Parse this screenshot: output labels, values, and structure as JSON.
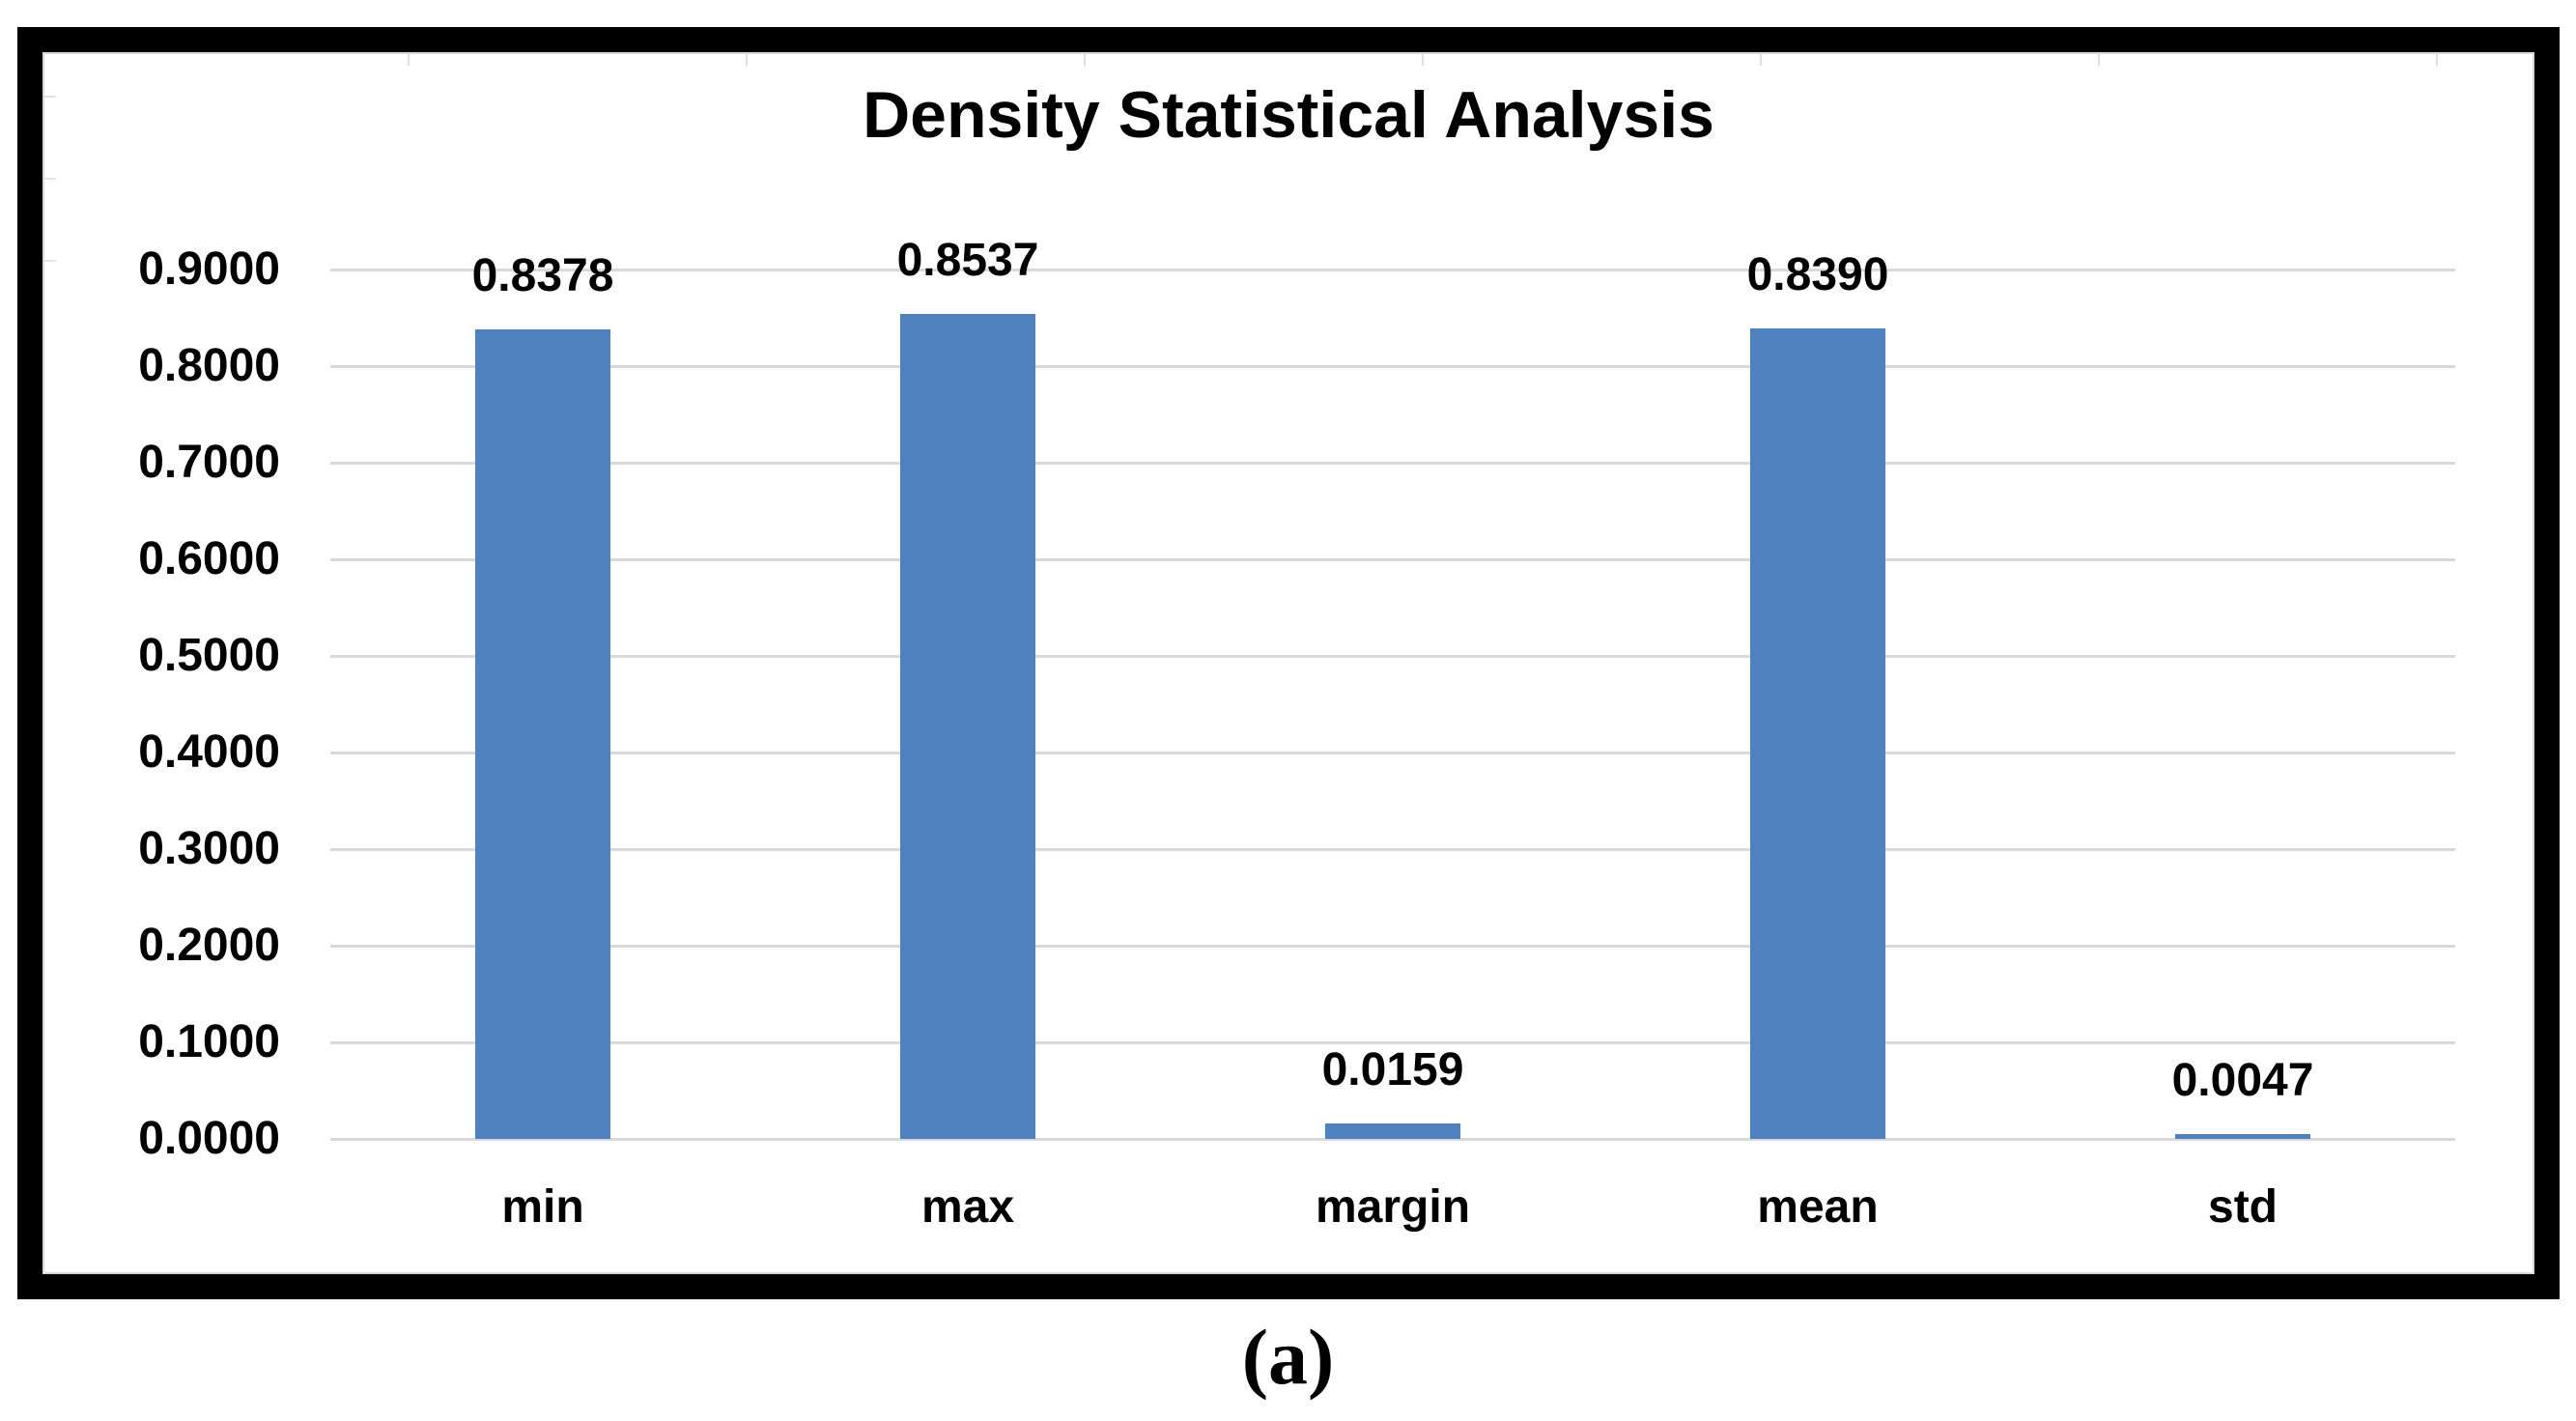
{
  "figure": {
    "caption": "(a)"
  },
  "chart_data": {
    "type": "bar",
    "title": "Density Statistical Analysis",
    "categories": [
      "min",
      "max",
      "margin",
      "mean",
      "std"
    ],
    "values": [
      0.8378,
      0.8537,
      0.0159,
      0.839,
      0.0047
    ],
    "value_labels": [
      "0.8378",
      "0.8537",
      "0.0159",
      "0.8390",
      "0.0047"
    ],
    "y_ticks": [
      "0.9000",
      "0.8000",
      "0.7000",
      "0.6000",
      "0.5000",
      "0.4000",
      "0.3000",
      "0.2000",
      "0.1000",
      "0.0000"
    ],
    "ylim": [
      0,
      0.9
    ],
    "xlabel": "",
    "ylabel": "",
    "grid": true,
    "legend": "none",
    "bar_color": "#4E81BD",
    "gridline_color": "#D9D9D9",
    "title_color": "#000000",
    "frame_color": "#000000"
  }
}
